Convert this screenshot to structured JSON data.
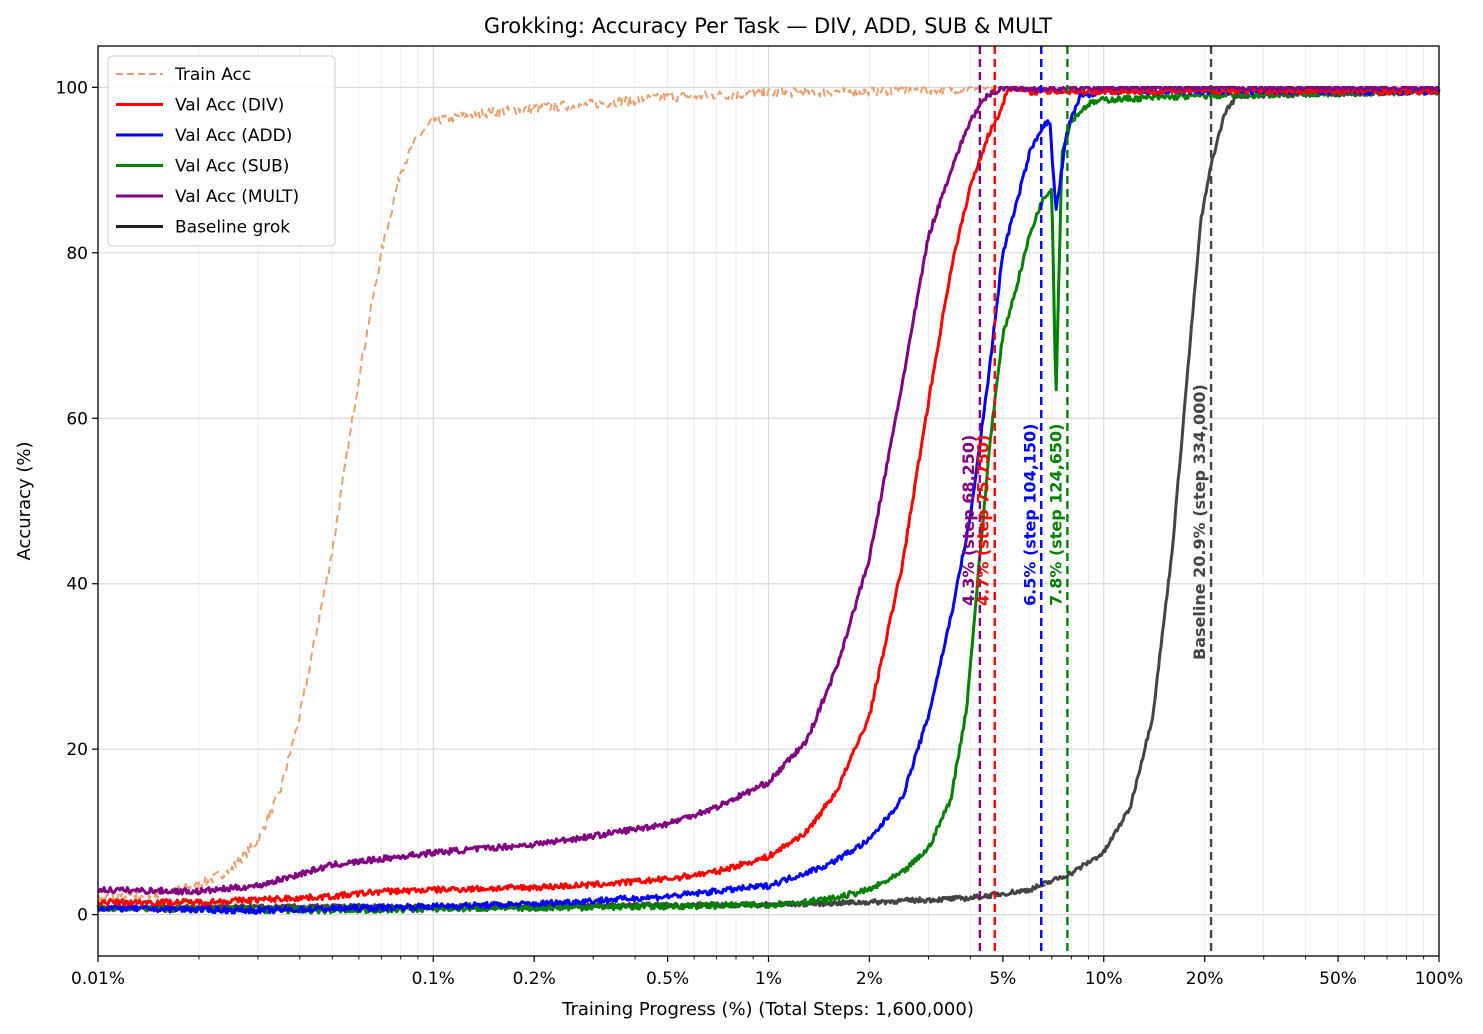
{
  "chart_data": {
    "type": "line",
    "title": "Grokking: Accuracy Per Task — DIV, ADD, SUB & MULT",
    "xlabel": "Training Progress (%) (Total Steps: 1,600,000)",
    "ylabel": "Accuracy (%)",
    "xscale": "log",
    "xlim": [
      0.01,
      100
    ],
    "ylim": [
      -5,
      105
    ],
    "grid": true,
    "legend_position": "top-left",
    "x_ticks": [
      {
        "v": 0.01,
        "label": "0.01%"
      },
      {
        "v": 0.1,
        "label": "0.1%"
      },
      {
        "v": 0.2,
        "label": "0.2%"
      },
      {
        "v": 0.5,
        "label": "0.5%"
      },
      {
        "v": 1,
        "label": "1%"
      },
      {
        "v": 2,
        "label": "2%"
      },
      {
        "v": 5,
        "label": "5%"
      },
      {
        "v": 10,
        "label": "10%"
      },
      {
        "v": 20,
        "label": "20%"
      },
      {
        "v": 50,
        "label": "50%"
      },
      {
        "v": 100,
        "label": "100%"
      }
    ],
    "y_ticks": [
      {
        "v": 0,
        "label": "0"
      },
      {
        "v": 20,
        "label": "20"
      },
      {
        "v": 40,
        "label": "40"
      },
      {
        "v": 60,
        "label": "60"
      },
      {
        "v": 80,
        "label": "80"
      },
      {
        "v": 100,
        "label": "100"
      }
    ],
    "series": [
      {
        "key": "train",
        "name": "Train Acc",
        "color": "#e8a070",
        "dash": true,
        "width": 2,
        "noise": 0.6,
        "points": [
          [
            0.01,
            2
          ],
          [
            0.015,
            2.5
          ],
          [
            0.02,
            3.5
          ],
          [
            0.025,
            5.5
          ],
          [
            0.03,
            9
          ],
          [
            0.035,
            15
          ],
          [
            0.04,
            24
          ],
          [
            0.05,
            44
          ],
          [
            0.06,
            65
          ],
          [
            0.07,
            80
          ],
          [
            0.08,
            90
          ],
          [
            0.09,
            94
          ],
          [
            0.1,
            96
          ],
          [
            0.15,
            97
          ],
          [
            0.2,
            97.5
          ],
          [
            0.3,
            98
          ],
          [
            0.5,
            98.8
          ],
          [
            1,
            99.3
          ],
          [
            2,
            99.6
          ],
          [
            4,
            99.9
          ],
          [
            5,
            100
          ],
          [
            100,
            100
          ]
        ]
      },
      {
        "key": "div",
        "name": "Val Acc (DIV)",
        "color": "#ff0000",
        "dash": false,
        "width": 3,
        "noise": 0.35,
        "points": [
          [
            0.01,
            1.5
          ],
          [
            0.02,
            1.5
          ],
          [
            0.03,
            1.8
          ],
          [
            0.05,
            2.2
          ],
          [
            0.07,
            2.8
          ],
          [
            0.1,
            3
          ],
          [
            0.2,
            3.3
          ],
          [
            0.3,
            3.6
          ],
          [
            0.5,
            4.3
          ],
          [
            0.7,
            5.2
          ],
          [
            1,
            7
          ],
          [
            1.3,
            10
          ],
          [
            1.6,
            15
          ],
          [
            2,
            24
          ],
          [
            2.5,
            42
          ],
          [
            3,
            62
          ],
          [
            3.5,
            78
          ],
          [
            4,
            88
          ],
          [
            4.5,
            94
          ],
          [
            4.9,
            97
          ],
          [
            5.2,
            100
          ],
          [
            6,
            99.5
          ],
          [
            10,
            99.5
          ],
          [
            20,
            99.6
          ],
          [
            100,
            99.5
          ]
        ]
      },
      {
        "key": "add",
        "name": "Val Acc (ADD)",
        "color": "#0000ff",
        "dash": false,
        "width": 3,
        "noise": 0.35,
        "points": [
          [
            0.01,
            0.8
          ],
          [
            0.03,
            0.5
          ],
          [
            0.1,
            1
          ],
          [
            0.2,
            1.3
          ],
          [
            0.5,
            2.2
          ],
          [
            1,
            3.5
          ],
          [
            1.5,
            6
          ],
          [
            2,
            9
          ],
          [
            2.5,
            14
          ],
          [
            3,
            24
          ],
          [
            3.5,
            36
          ],
          [
            4,
            48
          ],
          [
            4.5,
            64
          ],
          [
            5,
            80
          ],
          [
            5.5,
            86
          ],
          [
            6,
            92
          ],
          [
            6.5,
            95
          ],
          [
            6.9,
            96
          ],
          [
            7.2,
            85
          ],
          [
            7.8,
            95
          ],
          [
            8.5,
            99
          ],
          [
            10,
            99.5
          ],
          [
            100,
            99.5
          ]
        ]
      },
      {
        "key": "sub",
        "name": "Val Acc (SUB)",
        "color": "#008000",
        "dash": false,
        "width": 3,
        "noise": 0.35,
        "points": [
          [
            0.01,
            0.8
          ],
          [
            0.05,
            0.5
          ],
          [
            0.1,
            0.7
          ],
          [
            0.5,
            1
          ],
          [
            1,
            1.2
          ],
          [
            1.5,
            1.8
          ],
          [
            2,
            3
          ],
          [
            2.5,
            5
          ],
          [
            3,
            8
          ],
          [
            3.5,
            14
          ],
          [
            3.9,
            25
          ],
          [
            4.2,
            40
          ],
          [
            4.6,
            58
          ],
          [
            5,
            70
          ],
          [
            5.5,
            76
          ],
          [
            6,
            82
          ],
          [
            6.5,
            86
          ],
          [
            7,
            88
          ],
          [
            7.2,
            62
          ],
          [
            7.5,
            92
          ],
          [
            8,
            96
          ],
          [
            9,
            98
          ],
          [
            10,
            98.5
          ],
          [
            20,
            99
          ],
          [
            100,
            99.5
          ]
        ]
      },
      {
        "key": "mult",
        "name": "Val Acc (MULT)",
        "color": "#800080",
        "dash": false,
        "width": 3,
        "noise": 0.35,
        "points": [
          [
            0.01,
            3
          ],
          [
            0.02,
            2.8
          ],
          [
            0.03,
            3.5
          ],
          [
            0.05,
            6
          ],
          [
            0.1,
            7.5
          ],
          [
            0.2,
            8.5
          ],
          [
            0.3,
            9.5
          ],
          [
            0.5,
            11
          ],
          [
            0.7,
            13
          ],
          [
            1,
            16
          ],
          [
            1.3,
            21
          ],
          [
            1.6,
            30
          ],
          [
            2,
            43
          ],
          [
            2.5,
            64
          ],
          [
            3,
            82
          ],
          [
            3.5,
            90
          ],
          [
            4,
            96
          ],
          [
            4.5,
            99
          ],
          [
            5,
            100
          ],
          [
            6,
            99.8
          ],
          [
            10,
            100
          ],
          [
            100,
            100
          ]
        ]
      },
      {
        "key": "baseline",
        "name": "Baseline grok",
        "color": "#444444",
        "dash": false,
        "width": 3,
        "noise": 0.3,
        "points": [
          [
            0.01,
            0.8
          ],
          [
            1,
            1.2
          ],
          [
            2,
            1.5
          ],
          [
            4,
            2
          ],
          [
            6,
            3
          ],
          [
            8,
            5
          ],
          [
            10,
            7.5
          ],
          [
            12,
            13
          ],
          [
            14,
            24
          ],
          [
            16,
            44
          ],
          [
            18,
            68
          ],
          [
            19.5,
            84
          ],
          [
            21,
            91
          ],
          [
            23,
            97
          ],
          [
            25,
            99
          ],
          [
            100,
            99.5
          ]
        ],
        "ref_points": [
          [
            0.01,
            1
          ],
          [
            0.1,
            1
          ],
          [
            1,
            1.3
          ],
          [
            2,
            1.6
          ],
          [
            4,
            2
          ],
          [
            5,
            2.3
          ],
          [
            6,
            3
          ],
          [
            7,
            3.8
          ]
        ]
      }
    ],
    "vlines": [
      {
        "x": 4.27,
        "color": "#800080",
        "label": "4.3% (step 68,250)"
      },
      {
        "x": 4.73,
        "color": "#ff0000",
        "label": "4.7% (step 75,750)"
      },
      {
        "x": 6.51,
        "color": "#0000ff",
        "label": "6.5% (step 104,150)"
      },
      {
        "x": 7.79,
        "color": "#008000",
        "label": "7.8% (step 124,650)"
      },
      {
        "x": 20.9,
        "color": "#444444",
        "label": "Baseline 20.9% (step 334,000)"
      }
    ]
  }
}
